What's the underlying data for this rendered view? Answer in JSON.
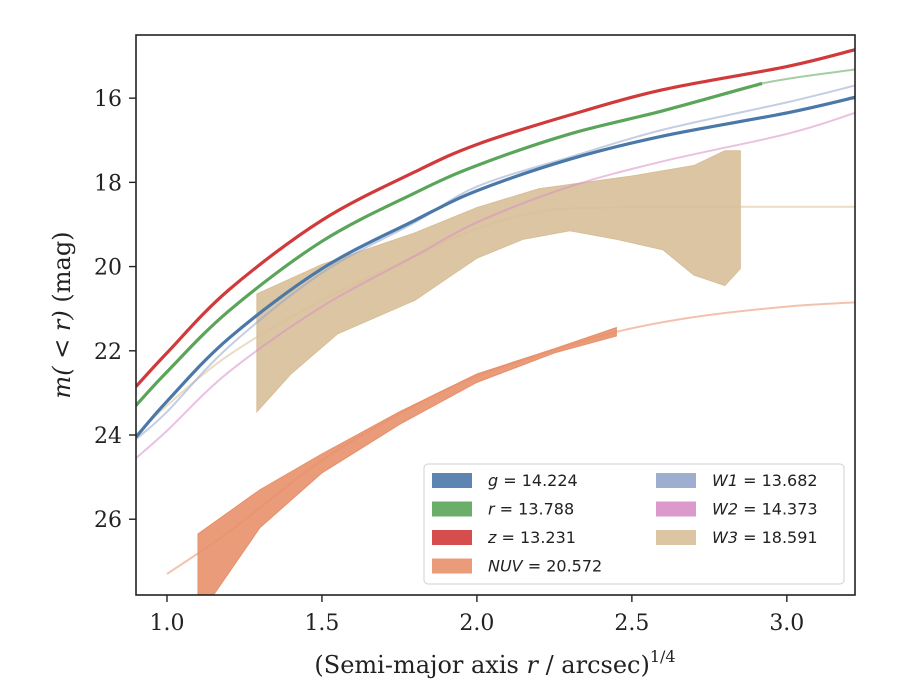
{
  "chart_data": {
    "type": "line",
    "title": "",
    "xlabel": "(Semi-major axis r / arcsec)",
    "xlabel_prefix": "(Semi-major axis ",
    "xlabel_var": "r",
    "xlabel_suffix": " / arcsec)",
    "xlabel_sup": "1/4",
    "ylabel": "m(< r) (mag)",
    "ylabel_math": "m( < r)",
    "ylabel_unit": " (mag)",
    "xlim": [
      0.9,
      3.22
    ],
    "ylim": [
      27.8,
      14.5
    ],
    "y_inverted": true,
    "xticks": [
      1.0,
      1.5,
      2.0,
      2.5,
      3.0
    ],
    "xtick_labels": [
      "1.0",
      "1.5",
      "2.0",
      "2.5",
      "3.0"
    ],
    "yticks": [
      16,
      18,
      20,
      22,
      24,
      26
    ],
    "ytick_labels": [
      "16",
      "18",
      "20",
      "22",
      "24",
      "26"
    ],
    "grid": false,
    "legend_position": "lower-right",
    "series": [
      {
        "name": "g",
        "label_value": "14.224",
        "color": "#4a78a8",
        "curve": [
          [
            0.9,
            24.05
          ],
          [
            1.0,
            23.2
          ],
          [
            1.2,
            21.7
          ],
          [
            1.5,
            20.05
          ],
          [
            1.8,
            18.9
          ],
          [
            2.0,
            18.2
          ],
          [
            2.3,
            17.45
          ],
          [
            2.6,
            16.9
          ],
          [
            3.0,
            16.35
          ],
          [
            3.22,
            15.98
          ]
        ],
        "measured_until": 3.22
      },
      {
        "name": "r",
        "label_value": "13.788",
        "color": "#5aa55a",
        "curve": [
          [
            0.9,
            23.3
          ],
          [
            1.0,
            22.5
          ],
          [
            1.2,
            21.05
          ],
          [
            1.5,
            19.4
          ],
          [
            1.8,
            18.25
          ],
          [
            2.0,
            17.6
          ],
          [
            2.3,
            16.85
          ],
          [
            2.6,
            16.3
          ],
          [
            2.92,
            15.65
          ],
          [
            3.22,
            15.32
          ]
        ],
        "measured_until": 2.92
      },
      {
        "name": "z",
        "label_value": "13.231",
        "color": "#d03a3a",
        "curve": [
          [
            0.9,
            22.85
          ],
          [
            1.0,
            22.05
          ],
          [
            1.2,
            20.55
          ],
          [
            1.5,
            18.9
          ],
          [
            1.8,
            17.75
          ],
          [
            2.0,
            17.1
          ],
          [
            2.3,
            16.4
          ],
          [
            2.6,
            15.8
          ],
          [
            3.0,
            15.25
          ],
          [
            3.22,
            14.85
          ]
        ],
        "measured_until": 3.22
      },
      {
        "name": "NUV",
        "label_value": "20.572",
        "color": "#e8906a",
        "curve": [
          [
            1.0,
            27.3
          ],
          [
            1.2,
            26.3
          ],
          [
            1.5,
            24.6
          ],
          [
            1.8,
            23.3
          ],
          [
            2.0,
            22.6
          ],
          [
            2.2,
            22.1
          ],
          [
            2.45,
            21.55
          ],
          [
            2.7,
            21.2
          ],
          [
            3.0,
            20.95
          ],
          [
            3.22,
            20.85
          ]
        ],
        "band_upper": [
          [
            1.1,
            26.35
          ],
          [
            1.3,
            25.3
          ],
          [
            1.5,
            24.45
          ],
          [
            1.75,
            23.45
          ],
          [
            2.0,
            22.55
          ],
          [
            2.25,
            21.95
          ],
          [
            2.45,
            21.45
          ]
        ],
        "band_lower": [
          [
            1.1,
            27.8
          ],
          [
            1.15,
            27.8
          ],
          [
            1.3,
            26.2
          ],
          [
            1.5,
            24.9
          ],
          [
            1.75,
            23.75
          ],
          [
            2.0,
            22.75
          ],
          [
            2.25,
            22.05
          ],
          [
            2.45,
            21.65
          ]
        ]
      },
      {
        "name": "W1",
        "label_value": "13.682",
        "color": "#93a5cc",
        "curve": [
          [
            0.9,
            24.1
          ],
          [
            1.0,
            23.45
          ],
          [
            1.2,
            21.9
          ],
          [
            1.5,
            20.15
          ],
          [
            1.8,
            18.95
          ],
          [
            2.0,
            18.1
          ],
          [
            2.3,
            17.4
          ],
          [
            2.6,
            16.75
          ],
          [
            3.0,
            16.1
          ],
          [
            3.22,
            15.7
          ]
        ]
      },
      {
        "name": "W2",
        "label_value": "14.373",
        "color": "#d88ec6",
        "curve": [
          [
            0.9,
            24.55
          ],
          [
            1.0,
            23.9
          ],
          [
            1.2,
            22.5
          ],
          [
            1.5,
            20.95
          ],
          [
            1.8,
            19.75
          ],
          [
            2.0,
            18.95
          ],
          [
            2.3,
            18.1
          ],
          [
            2.6,
            17.5
          ],
          [
            3.0,
            16.85
          ],
          [
            3.22,
            16.35
          ]
        ]
      },
      {
        "name": "W3",
        "label_value": "18.591",
        "color": "#d8bf98",
        "curve": [
          [
            0.9,
            24.0
          ],
          [
            1.0,
            23.3
          ],
          [
            1.2,
            22.1
          ],
          [
            1.5,
            20.8
          ],
          [
            1.8,
            19.75
          ],
          [
            2.0,
            19.1
          ],
          [
            2.2,
            18.7
          ],
          [
            2.4,
            18.6
          ],
          [
            2.8,
            18.58
          ],
          [
            3.22,
            18.58
          ]
        ],
        "band_upper": [
          [
            1.29,
            20.65
          ],
          [
            1.5,
            19.95
          ],
          [
            1.8,
            19.2
          ],
          [
            2.0,
            18.6
          ],
          [
            2.2,
            18.15
          ],
          [
            2.5,
            17.85
          ],
          [
            2.7,
            17.6
          ],
          [
            2.8,
            17.25
          ],
          [
            2.85,
            17.25
          ],
          [
            2.85,
            20.05
          ]
        ],
        "band_lower": [
          [
            1.29,
            23.45
          ],
          [
            1.4,
            22.55
          ],
          [
            1.55,
            21.6
          ],
          [
            1.8,
            20.8
          ],
          [
            1.92,
            20.2
          ],
          [
            2.0,
            19.8
          ],
          [
            2.15,
            19.35
          ],
          [
            2.3,
            19.15
          ],
          [
            2.45,
            19.35
          ],
          [
            2.6,
            19.6
          ],
          [
            2.7,
            20.2
          ],
          [
            2.8,
            20.45
          ]
        ]
      }
    ]
  }
}
